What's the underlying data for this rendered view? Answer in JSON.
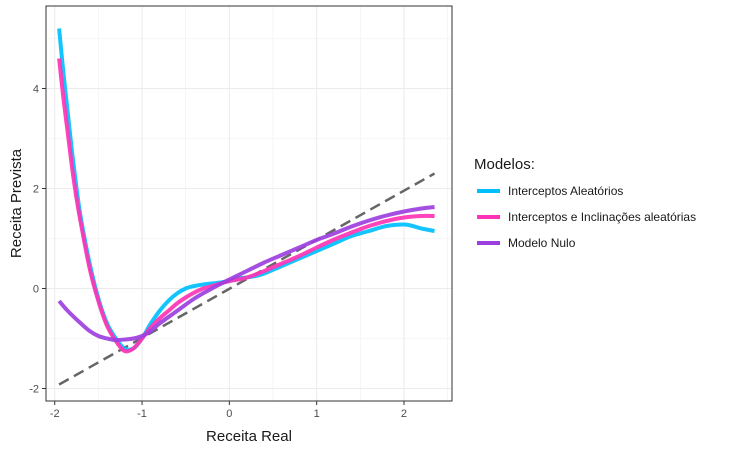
{
  "chart_data": {
    "type": "line",
    "xlabel": "Receita Real",
    "ylabel": "Receita Prevista",
    "xlim": [
      -2.1,
      2.55
    ],
    "ylim": [
      -2.25,
      5.65
    ],
    "x_ticks": [
      -2,
      -1,
      0,
      1,
      2
    ],
    "y_ticks": [
      -2,
      0,
      2,
      4
    ],
    "x_tick_labels": [
      "-2",
      "-1",
      "0",
      "1",
      "2"
    ],
    "y_tick_labels": [
      "-2",
      "0",
      "2",
      "4"
    ],
    "grid": true,
    "legend": {
      "title": "Modelos:",
      "position": "right"
    },
    "reference_line": {
      "style": "dashed",
      "color": "#666666",
      "x": [
        -1.95,
        2.35
      ],
      "y": [
        -1.92,
        2.3
      ]
    },
    "series": [
      {
        "name": "Interceptos Aleatórios",
        "color": "#00BFFF",
        "x": [
          -1.95,
          -1.9,
          -1.85,
          -1.8,
          -1.75,
          -1.7,
          -1.6,
          -1.5,
          -1.4,
          -1.3,
          -1.2,
          -1.1,
          -1.0,
          -0.9,
          -0.8,
          -0.7,
          -0.6,
          -0.5,
          -0.4,
          -0.3,
          -0.2,
          -0.1,
          0.0,
          0.1,
          0.2,
          0.3,
          0.4,
          0.6,
          0.8,
          1.0,
          1.2,
          1.4,
          1.6,
          1.8,
          2.0,
          2.1,
          2.2,
          2.35
        ],
        "y": [
          5.2,
          4.3,
          3.5,
          2.7,
          2.0,
          1.4,
          0.5,
          -0.2,
          -0.7,
          -1.0,
          -1.2,
          -1.2,
          -1.0,
          -0.7,
          -0.45,
          -0.25,
          -0.1,
          0.0,
          0.05,
          0.08,
          0.1,
          0.12,
          0.15,
          0.2,
          0.22,
          0.25,
          0.3,
          0.45,
          0.6,
          0.75,
          0.9,
          1.05,
          1.15,
          1.25,
          1.28,
          1.25,
          1.2,
          1.15
        ]
      },
      {
        "name": "Interceptos e Inclinações aleatórias",
        "color": "#FF33B5",
        "x": [
          -1.95,
          -1.9,
          -1.85,
          -1.8,
          -1.75,
          -1.7,
          -1.6,
          -1.5,
          -1.4,
          -1.3,
          -1.2,
          -1.1,
          -1.0,
          -0.9,
          -0.8,
          -0.7,
          -0.6,
          -0.5,
          -0.4,
          -0.3,
          -0.2,
          -0.1,
          0.0,
          0.1,
          0.2,
          0.3,
          0.4,
          0.6,
          0.8,
          1.0,
          1.2,
          1.4,
          1.6,
          1.8,
          2.0,
          2.2,
          2.35
        ],
        "y": [
          4.6,
          3.8,
          3.1,
          2.4,
          1.8,
          1.3,
          0.4,
          -0.25,
          -0.75,
          -1.05,
          -1.25,
          -1.2,
          -1.0,
          -0.78,
          -0.6,
          -0.45,
          -0.3,
          -0.18,
          -0.08,
          0.0,
          0.05,
          0.1,
          0.15,
          0.18,
          0.22,
          0.28,
          0.35,
          0.5,
          0.65,
          0.82,
          0.98,
          1.12,
          1.25,
          1.35,
          1.42,
          1.45,
          1.45
        ]
      },
      {
        "name": "Modelo Nulo",
        "color": "#9D3FE0",
        "x": [
          -1.95,
          -1.85,
          -1.7,
          -1.6,
          -1.5,
          -1.4,
          -1.3,
          -1.2,
          -1.1,
          -1.0,
          -0.9,
          -0.8,
          -0.6,
          -0.4,
          -0.2,
          0.0,
          0.2,
          0.4,
          0.6,
          0.8,
          1.0,
          1.2,
          1.4,
          1.6,
          1.8,
          2.0,
          2.2,
          2.35
        ],
        "y": [
          -0.25,
          -0.45,
          -0.7,
          -0.85,
          -0.95,
          -1.0,
          -1.03,
          -1.02,
          -1.0,
          -0.95,
          -0.85,
          -0.7,
          -0.45,
          -0.2,
          0.0,
          0.18,
          0.35,
          0.52,
          0.67,
          0.82,
          0.97,
          1.1,
          1.24,
          1.36,
          1.46,
          1.54,
          1.6,
          1.63
        ]
      }
    ]
  }
}
